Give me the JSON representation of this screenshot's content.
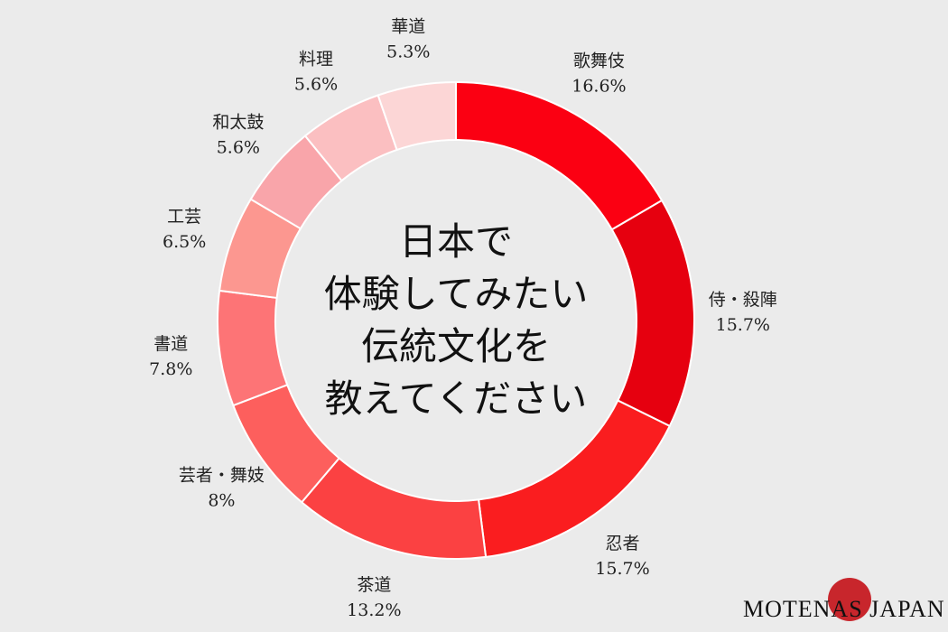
{
  "chart_data": {
    "type": "donut",
    "center_text": [
      "日本で",
      "体験してみたい",
      "伝統文化を",
      "教えてください"
    ],
    "slices": [
      {
        "label": "歌舞伎",
        "value": 16.6,
        "display": "16.6%",
        "color": "#fb0012"
      },
      {
        "label": "侍・殺陣",
        "value": 15.7,
        "display": "15.7%",
        "color": "#e6000f"
      },
      {
        "label": "忍者",
        "value": 15.7,
        "display": "15.7%",
        "color": "#fa1d1f"
      },
      {
        "label": "茶道",
        "value": 13.2,
        "display": "13.2%",
        "color": "#fb4142"
      },
      {
        "label": "芸者・舞妓",
        "value": 8,
        "display": "8%",
        "color": "#fd5f5d"
      },
      {
        "label": "書道",
        "value": 7.8,
        "display": "7.8%",
        "color": "#fd7476"
      },
      {
        "label": "工芸",
        "value": 6.5,
        "display": "6.5%",
        "color": "#fc9790"
      },
      {
        "label": "和太鼓",
        "value": 5.6,
        "display": "5.6%",
        "color": "#f9a5aa"
      },
      {
        "label": "料理",
        "value": 5.6,
        "display": "5.6%",
        "color": "#fbbfc1"
      },
      {
        "label": "華道",
        "value": 5.3,
        "display": "5.3%",
        "color": "#fcd6d6"
      }
    ]
  },
  "brand": {
    "text": "MOTENAS JAPAN",
    "sun_color": "#c8262c"
  }
}
